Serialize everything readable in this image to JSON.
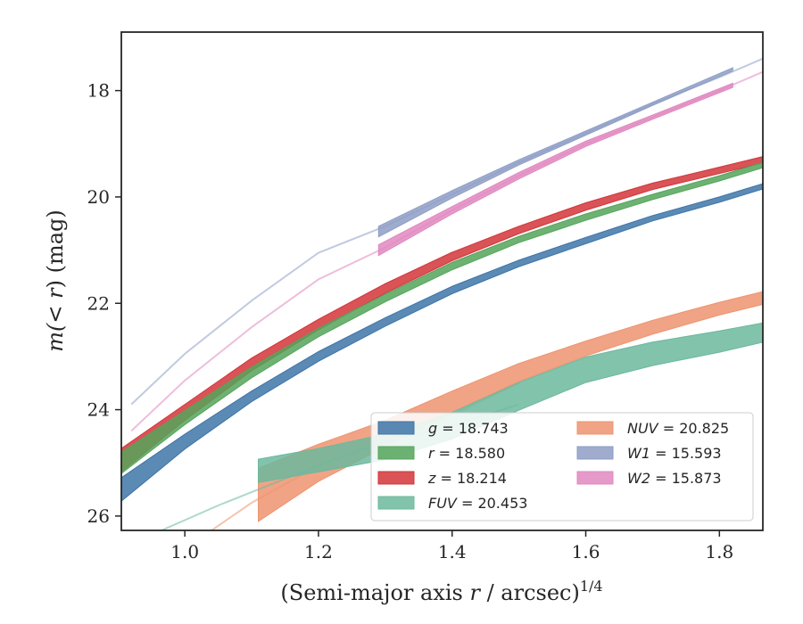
{
  "chart_data": {
    "type": "line",
    "title": "",
    "xlabel": {
      "prefix": "(Semi-major axis ",
      "var": "r",
      "suffix": " / arcsec)",
      "sup": "1/4"
    },
    "ylabel": {
      "prefix": "m(< ",
      "var": "r",
      "suffix": ") (mag)"
    },
    "xlim": [
      0.905,
      1.865
    ],
    "ylim": [
      26.27,
      16.9
    ],
    "y_inverted": true,
    "xticks": [
      1.0,
      1.2,
      1.4,
      1.6,
      1.8
    ],
    "xtick_labels": [
      "1.0",
      "1.2",
      "1.4",
      "1.6",
      "1.8"
    ],
    "yticks": [
      18,
      20,
      22,
      24,
      26
    ],
    "ytick_labels": [
      "18",
      "20",
      "22",
      "24",
      "26"
    ],
    "grid": false,
    "legend_placement": "lower-right",
    "series": [
      {
        "key": "W1",
        "label_var": "W1",
        "label_value": "15.593",
        "color": "#8E9EC6",
        "extrapolated": {
          "x": [
            0.92,
            1.0,
            1.1,
            1.2,
            1.3,
            1.4,
            1.5,
            1.6,
            1.7,
            1.8,
            1.865
          ],
          "y": [
            23.9,
            22.95,
            21.95,
            21.05,
            20.55,
            19.95,
            19.35,
            18.8,
            18.25,
            17.75,
            17.4
          ]
        },
        "band": {
          "x": [
            1.29,
            1.4,
            1.5,
            1.6,
            1.7,
            1.82
          ],
          "y": [
            20.65,
            19.95,
            19.35,
            18.8,
            18.25,
            17.6
          ],
          "half_width": [
            0.1,
            0.07,
            0.05,
            0.04,
            0.03,
            0.03
          ]
        }
      },
      {
        "key": "W2",
        "label_var": "W2",
        "label_value": "15.873",
        "color": "#E088BF",
        "extrapolated": {
          "x": [
            0.92,
            1.0,
            1.1,
            1.2,
            1.3,
            1.4,
            1.5,
            1.6,
            1.7,
            1.8,
            1.865
          ],
          "y": [
            24.4,
            23.45,
            22.45,
            21.55,
            20.95,
            20.25,
            19.6,
            19.0,
            18.5,
            18.0,
            17.65
          ]
        },
        "band": {
          "x": [
            1.29,
            1.4,
            1.5,
            1.6,
            1.7,
            1.82
          ],
          "y": [
            21.0,
            20.25,
            19.6,
            19.0,
            18.5,
            17.9
          ],
          "half_width": [
            0.1,
            0.07,
            0.06,
            0.05,
            0.04,
            0.04
          ]
        }
      },
      {
        "key": "z",
        "label_var": "z",
        "label_value": "18.214",
        "color": "#D2353A",
        "band": {
          "x": [
            0.905,
            1.0,
            1.1,
            1.2,
            1.3,
            1.4,
            1.5,
            1.6,
            1.7,
            1.8,
            1.865
          ],
          "y": [
            24.95,
            24.05,
            23.15,
            22.4,
            21.72,
            21.12,
            20.62,
            20.18,
            19.8,
            19.5,
            19.3
          ],
          "half_width": [
            0.22,
            0.15,
            0.12,
            0.1,
            0.09,
            0.08,
            0.07,
            0.07,
            0.06,
            0.06,
            0.06
          ]
        }
      },
      {
        "key": "r",
        "label_var": "r",
        "label_value": "18.580",
        "color": "#55A55B",
        "band": {
          "x": [
            0.905,
            1.0,
            1.1,
            1.2,
            1.3,
            1.4,
            1.5,
            1.6,
            1.7,
            1.8,
            1.865
          ],
          "y": [
            25.0,
            24.15,
            23.3,
            22.55,
            21.9,
            21.3,
            20.8,
            20.38,
            20.0,
            19.65,
            19.4
          ],
          "half_width": [
            0.2,
            0.13,
            0.1,
            0.08,
            0.07,
            0.07,
            0.06,
            0.06,
            0.05,
            0.05,
            0.05
          ]
        }
      },
      {
        "key": "g",
        "label_var": "g",
        "label_value": "18.743",
        "color": "#3E75A8",
        "band": {
          "x": [
            0.905,
            1.0,
            1.1,
            1.2,
            1.3,
            1.4,
            1.5,
            1.6,
            1.7,
            1.8,
            1.865
          ],
          "y": [
            25.5,
            24.6,
            23.75,
            23.0,
            22.35,
            21.75,
            21.25,
            20.82,
            20.4,
            20.05,
            19.8
          ],
          "half_width": [
            0.22,
            0.14,
            0.1,
            0.09,
            0.08,
            0.07,
            0.06,
            0.06,
            0.05,
            0.05,
            0.05
          ]
        }
      },
      {
        "key": "NUV",
        "label_var": "NUV",
        "label_value": "20.825",
        "color": "#ED9470",
        "extrapolated": {
          "x": [
            1.04,
            1.1,
            1.2,
            1.3,
            1.4,
            1.5
          ],
          "y": [
            26.27,
            25.75,
            25.05,
            24.55,
            24.1,
            23.5
          ]
        },
        "band": {
          "x": [
            1.11,
            1.2,
            1.3,
            1.4,
            1.5,
            1.6,
            1.7,
            1.8,
            1.865
          ],
          "y": [
            25.6,
            25.0,
            24.45,
            23.85,
            23.3,
            22.85,
            22.45,
            22.1,
            21.9
          ],
          "half_width": [
            0.5,
            0.35,
            0.25,
            0.2,
            0.17,
            0.14,
            0.13,
            0.12,
            0.12
          ]
        }
      },
      {
        "key": "FUV",
        "label_var": "FUV",
        "label_value": "20.453",
        "color": "#6CB89E",
        "extrapolated": {
          "x": [
            0.965,
            1.05,
            1.11,
            1.2,
            1.3,
            1.4,
            1.5
          ],
          "y": [
            26.27,
            25.8,
            25.5,
            25.05,
            24.6,
            24.3,
            23.9
          ]
        },
        "band": {
          "x": [
            1.11,
            1.2,
            1.3,
            1.4,
            1.5,
            1.6,
            1.7,
            1.8,
            1.865
          ],
          "y": [
            25.15,
            24.95,
            24.7,
            24.3,
            23.75,
            23.25,
            22.95,
            22.72,
            22.55
          ],
          "half_width": [
            0.22,
            0.22,
            0.24,
            0.25,
            0.26,
            0.24,
            0.22,
            0.2,
            0.18
          ]
        }
      }
    ],
    "legend": {
      "columns": [
        [
          "g",
          "r",
          "z",
          "FUV"
        ],
        [
          "NUV",
          "W1",
          "W2"
        ]
      ]
    }
  }
}
